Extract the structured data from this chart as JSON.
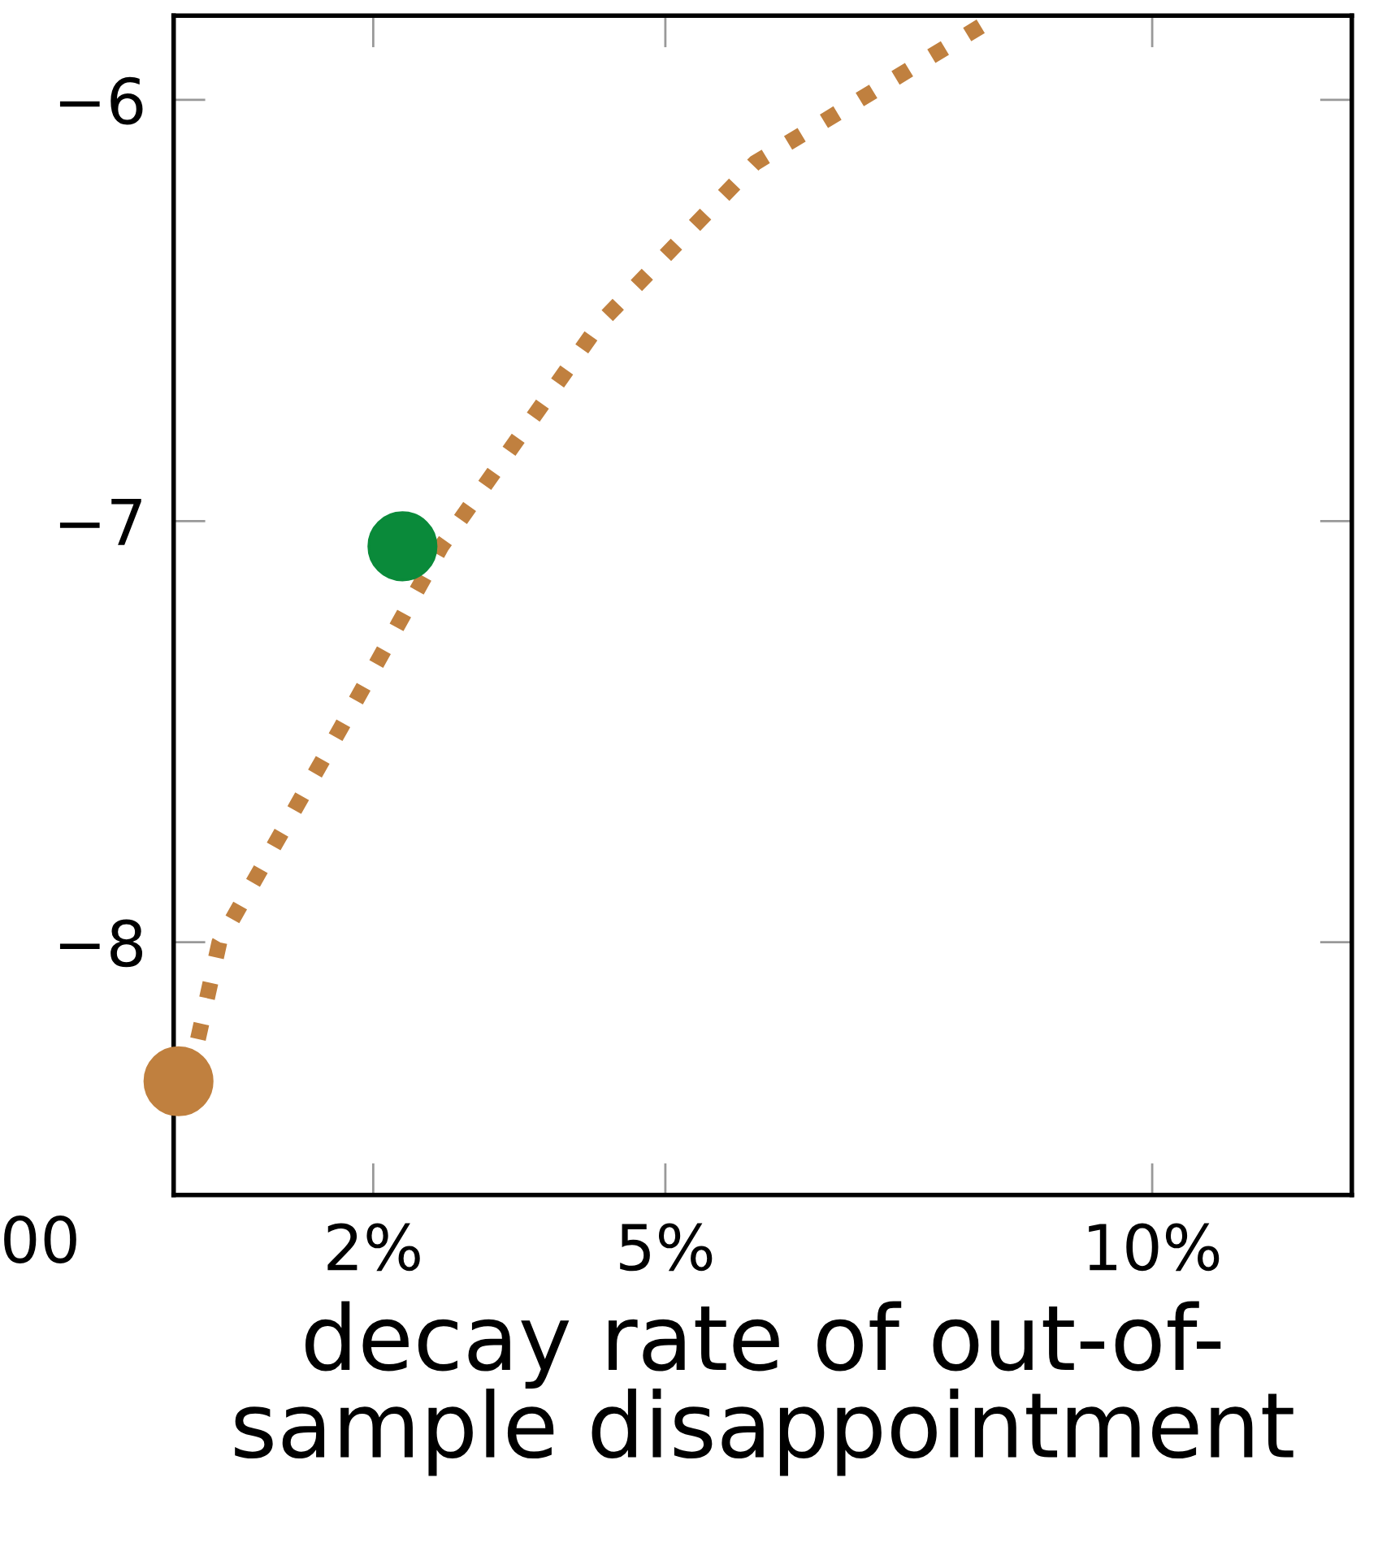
{
  "chart_data": {
    "type": "line",
    "xlabel": "decay rate of out-of-\nsample disappointment",
    "series": [
      {
        "color": "#c0803f",
        "line_style": "dotted",
        "marker": "none",
        "x": [
          0.2,
          0.42,
          1.67,
          2.7,
          4.33,
          5.92,
          8.42
        ],
        "values": [
          -8.23,
          -8.0,
          -7.49,
          -7.06,
          -6.53,
          -6.15,
          -5.8
        ]
      },
      {
        "type": "scatter",
        "marker": "circle",
        "color": "#c0803f",
        "x": [
          0
        ],
        "values": [
          -8.33
        ]
      },
      {
        "type": "scatter",
        "marker": "circle",
        "color": "#0a8a3a",
        "x": [
          2.3
        ],
        "values": [
          -7.06
        ]
      }
    ],
    "xlim": [
      -0.05,
      12.05
    ],
    "ylim": [
      -8.6,
      -5.8
    ],
    "xticks": [
      {
        "value": 2,
        "label": "2%"
      },
      {
        "value": 5,
        "label": "5%"
      },
      {
        "value": 10,
        "label": "10%"
      }
    ],
    "yticks": [
      {
        "value": -8,
        "label": "−8"
      },
      {
        "value": -7,
        "label": "−7"
      },
      {
        "value": -6,
        "label": "−6"
      }
    ],
    "annotations": [
      "00"
    ],
    "grid": false
  }
}
